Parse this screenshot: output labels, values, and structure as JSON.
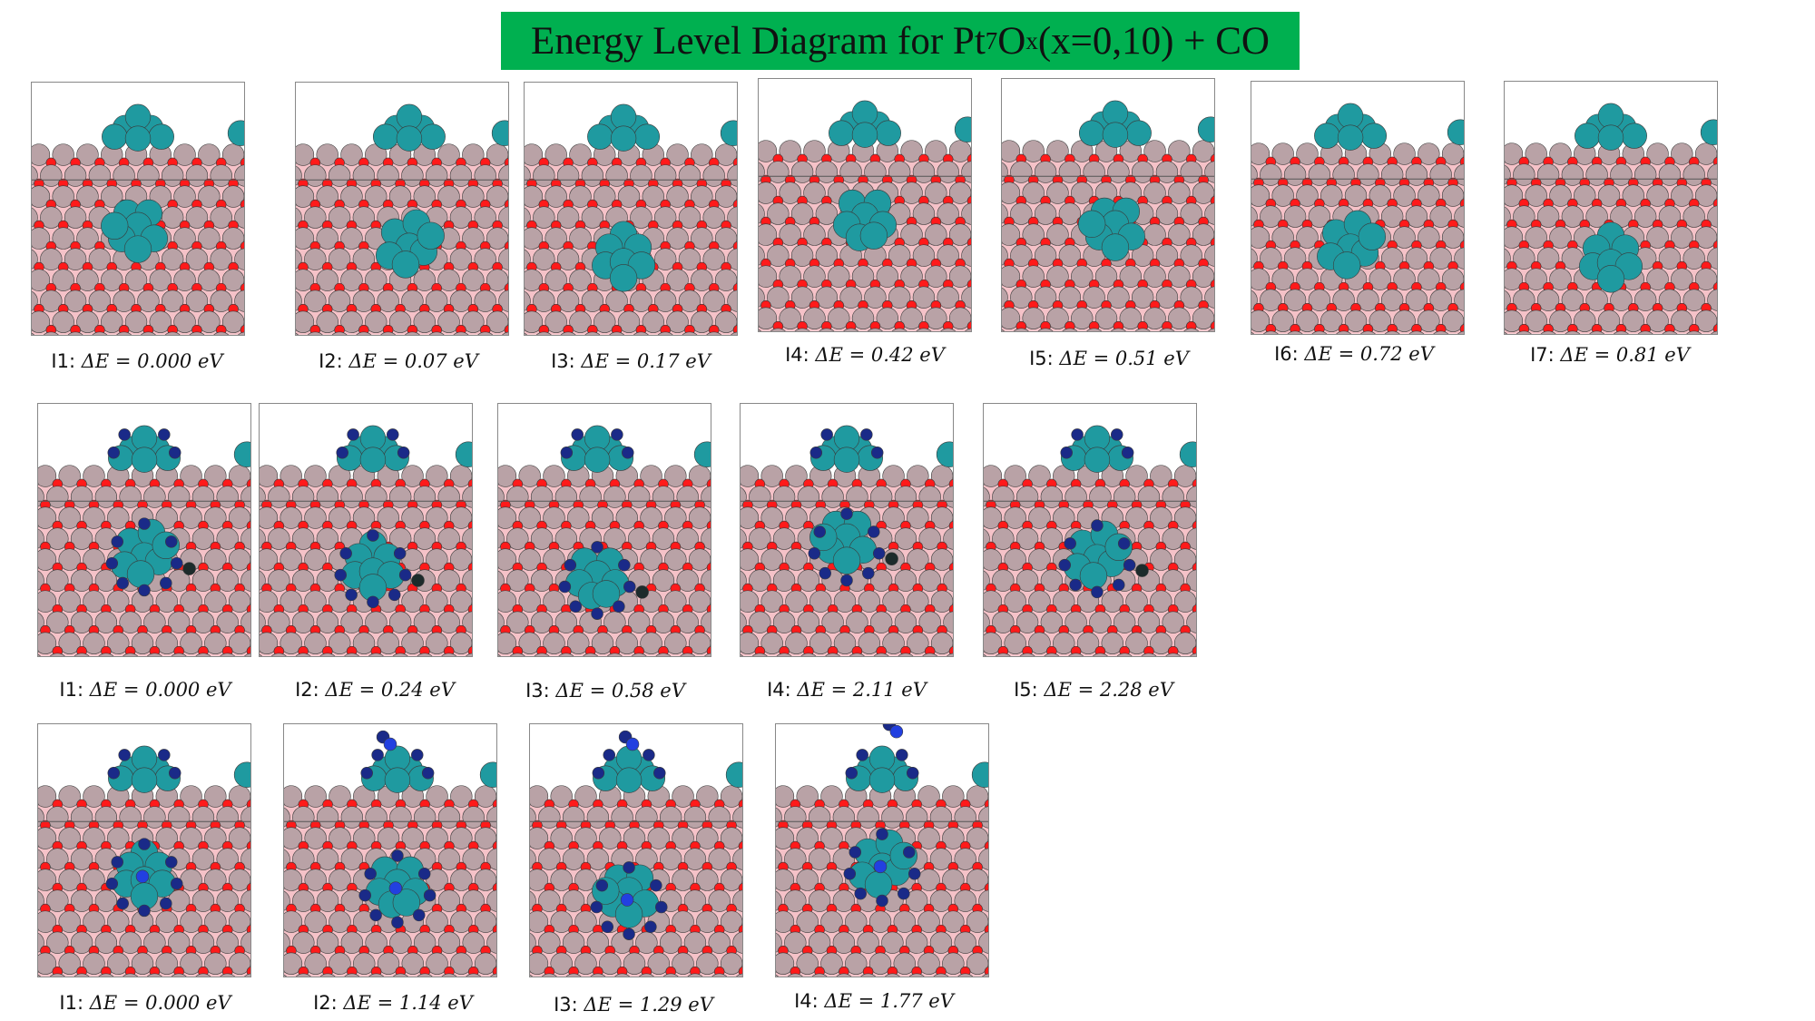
{
  "title": {
    "prefix": "Energy Level Diagram for Pt",
    "sub1": "7",
    "mid": "O",
    "sub2": "x",
    "suffix": "(x=0,10) + CO"
  },
  "colors": {
    "banner": "#00b050",
    "pt_surface": "#b9a2a6",
    "oxygen": "#ff1a1a",
    "pt_cluster": "#1f9aa0",
    "carbon_dark": "#1a2a88",
    "carbon_light": "#2240e0",
    "black_atom": "#1c2b2b",
    "bond_pink": "#f5c2c8"
  },
  "rows": [
    {
      "panels": [
        {
          "label": "I1:",
          "delta": "ΔE = 0.000 eV"
        },
        {
          "label": "I2:",
          "delta": "ΔE = 0.07 eV"
        },
        {
          "label": "I3:",
          "delta": "ΔE = 0.17 eV"
        },
        {
          "label": "I4:",
          "delta": "ΔE = 0.42 eV"
        },
        {
          "label": "I5:",
          "delta": "ΔE = 0.51 eV"
        },
        {
          "label": "I6:",
          "delta": "ΔE = 0.72 eV"
        },
        {
          "label": "I7:",
          "delta": "ΔE = 0.81 eV"
        }
      ]
    },
    {
      "panels": [
        {
          "label": "I1:",
          "delta": "ΔE = 0.000 eV"
        },
        {
          "label": "I2:",
          "delta": "ΔE = 0.24 eV"
        },
        {
          "label": "I3:",
          "delta": "ΔE = 0.58 eV"
        },
        {
          "label": "I4:",
          "delta": "ΔE = 2.11 eV"
        },
        {
          "label": "I5:",
          "delta": "ΔE = 2.28 eV"
        }
      ]
    },
    {
      "panels": [
        {
          "label": "I1:",
          "delta": "ΔE = 0.000 eV"
        },
        {
          "label": "I2:",
          "delta": "ΔE = 1.14 eV"
        },
        {
          "label": "I3:",
          "delta": "ΔE = 1.29 eV"
        },
        {
          "label": "I4:",
          "delta": "ΔE = 1.77 eV"
        }
      ]
    }
  ]
}
